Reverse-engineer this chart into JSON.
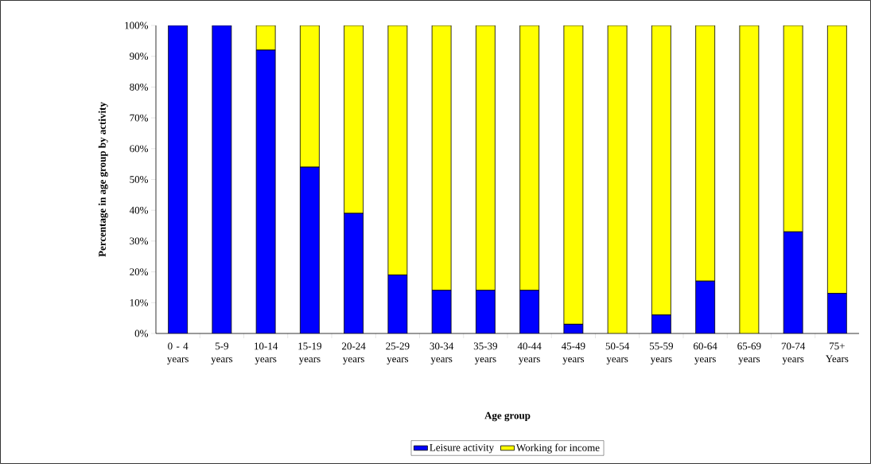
{
  "chart_data": {
    "type": "bar",
    "stacked": true,
    "xlabel": "Age group",
    "ylabel": "Percentage in age group by activity",
    "categories": [
      "0 - 4 years",
      "5-9 years",
      "10-14 years",
      "15-19 years",
      "20-24 years",
      "25-29 years",
      "30-34 years",
      "35-39 years",
      "40-44 years",
      "45-49 years",
      "50-54 years",
      "55-59 years",
      "60-64 years",
      "65-69 years",
      "70-74 years",
      "75+ Years"
    ],
    "series": [
      {
        "name": "Leisure activity",
        "color": "#0000ff",
        "values": [
          100,
          100,
          92,
          54,
          39,
          19,
          14,
          14,
          14,
          3,
          0,
          6,
          17,
          0,
          33,
          13
        ]
      },
      {
        "name": "Working for income",
        "color": "#ffff00",
        "values": [
          0,
          0,
          8,
          46,
          61,
          81,
          86,
          86,
          86,
          97,
          100,
          94,
          83,
          100,
          67,
          87
        ]
      }
    ],
    "ylim": [
      0,
      100
    ],
    "yticks": [
      {
        "value": 0,
        "label": "0%"
      },
      {
        "value": 10,
        "label": "10%"
      },
      {
        "value": 20,
        "label": "20%"
      },
      {
        "value": 30,
        "label": "30%"
      },
      {
        "value": 40,
        "label": "40%"
      },
      {
        "value": 50,
        "label": "50%"
      },
      {
        "value": 60,
        "label": "60%"
      },
      {
        "value": 70,
        "label": "70%"
      },
      {
        "value": 80,
        "label": "80%"
      },
      {
        "value": 90,
        "label": "90%"
      },
      {
        "value": 100,
        "label": "100%"
      }
    ],
    "grid": false,
    "legend": "bottom"
  }
}
